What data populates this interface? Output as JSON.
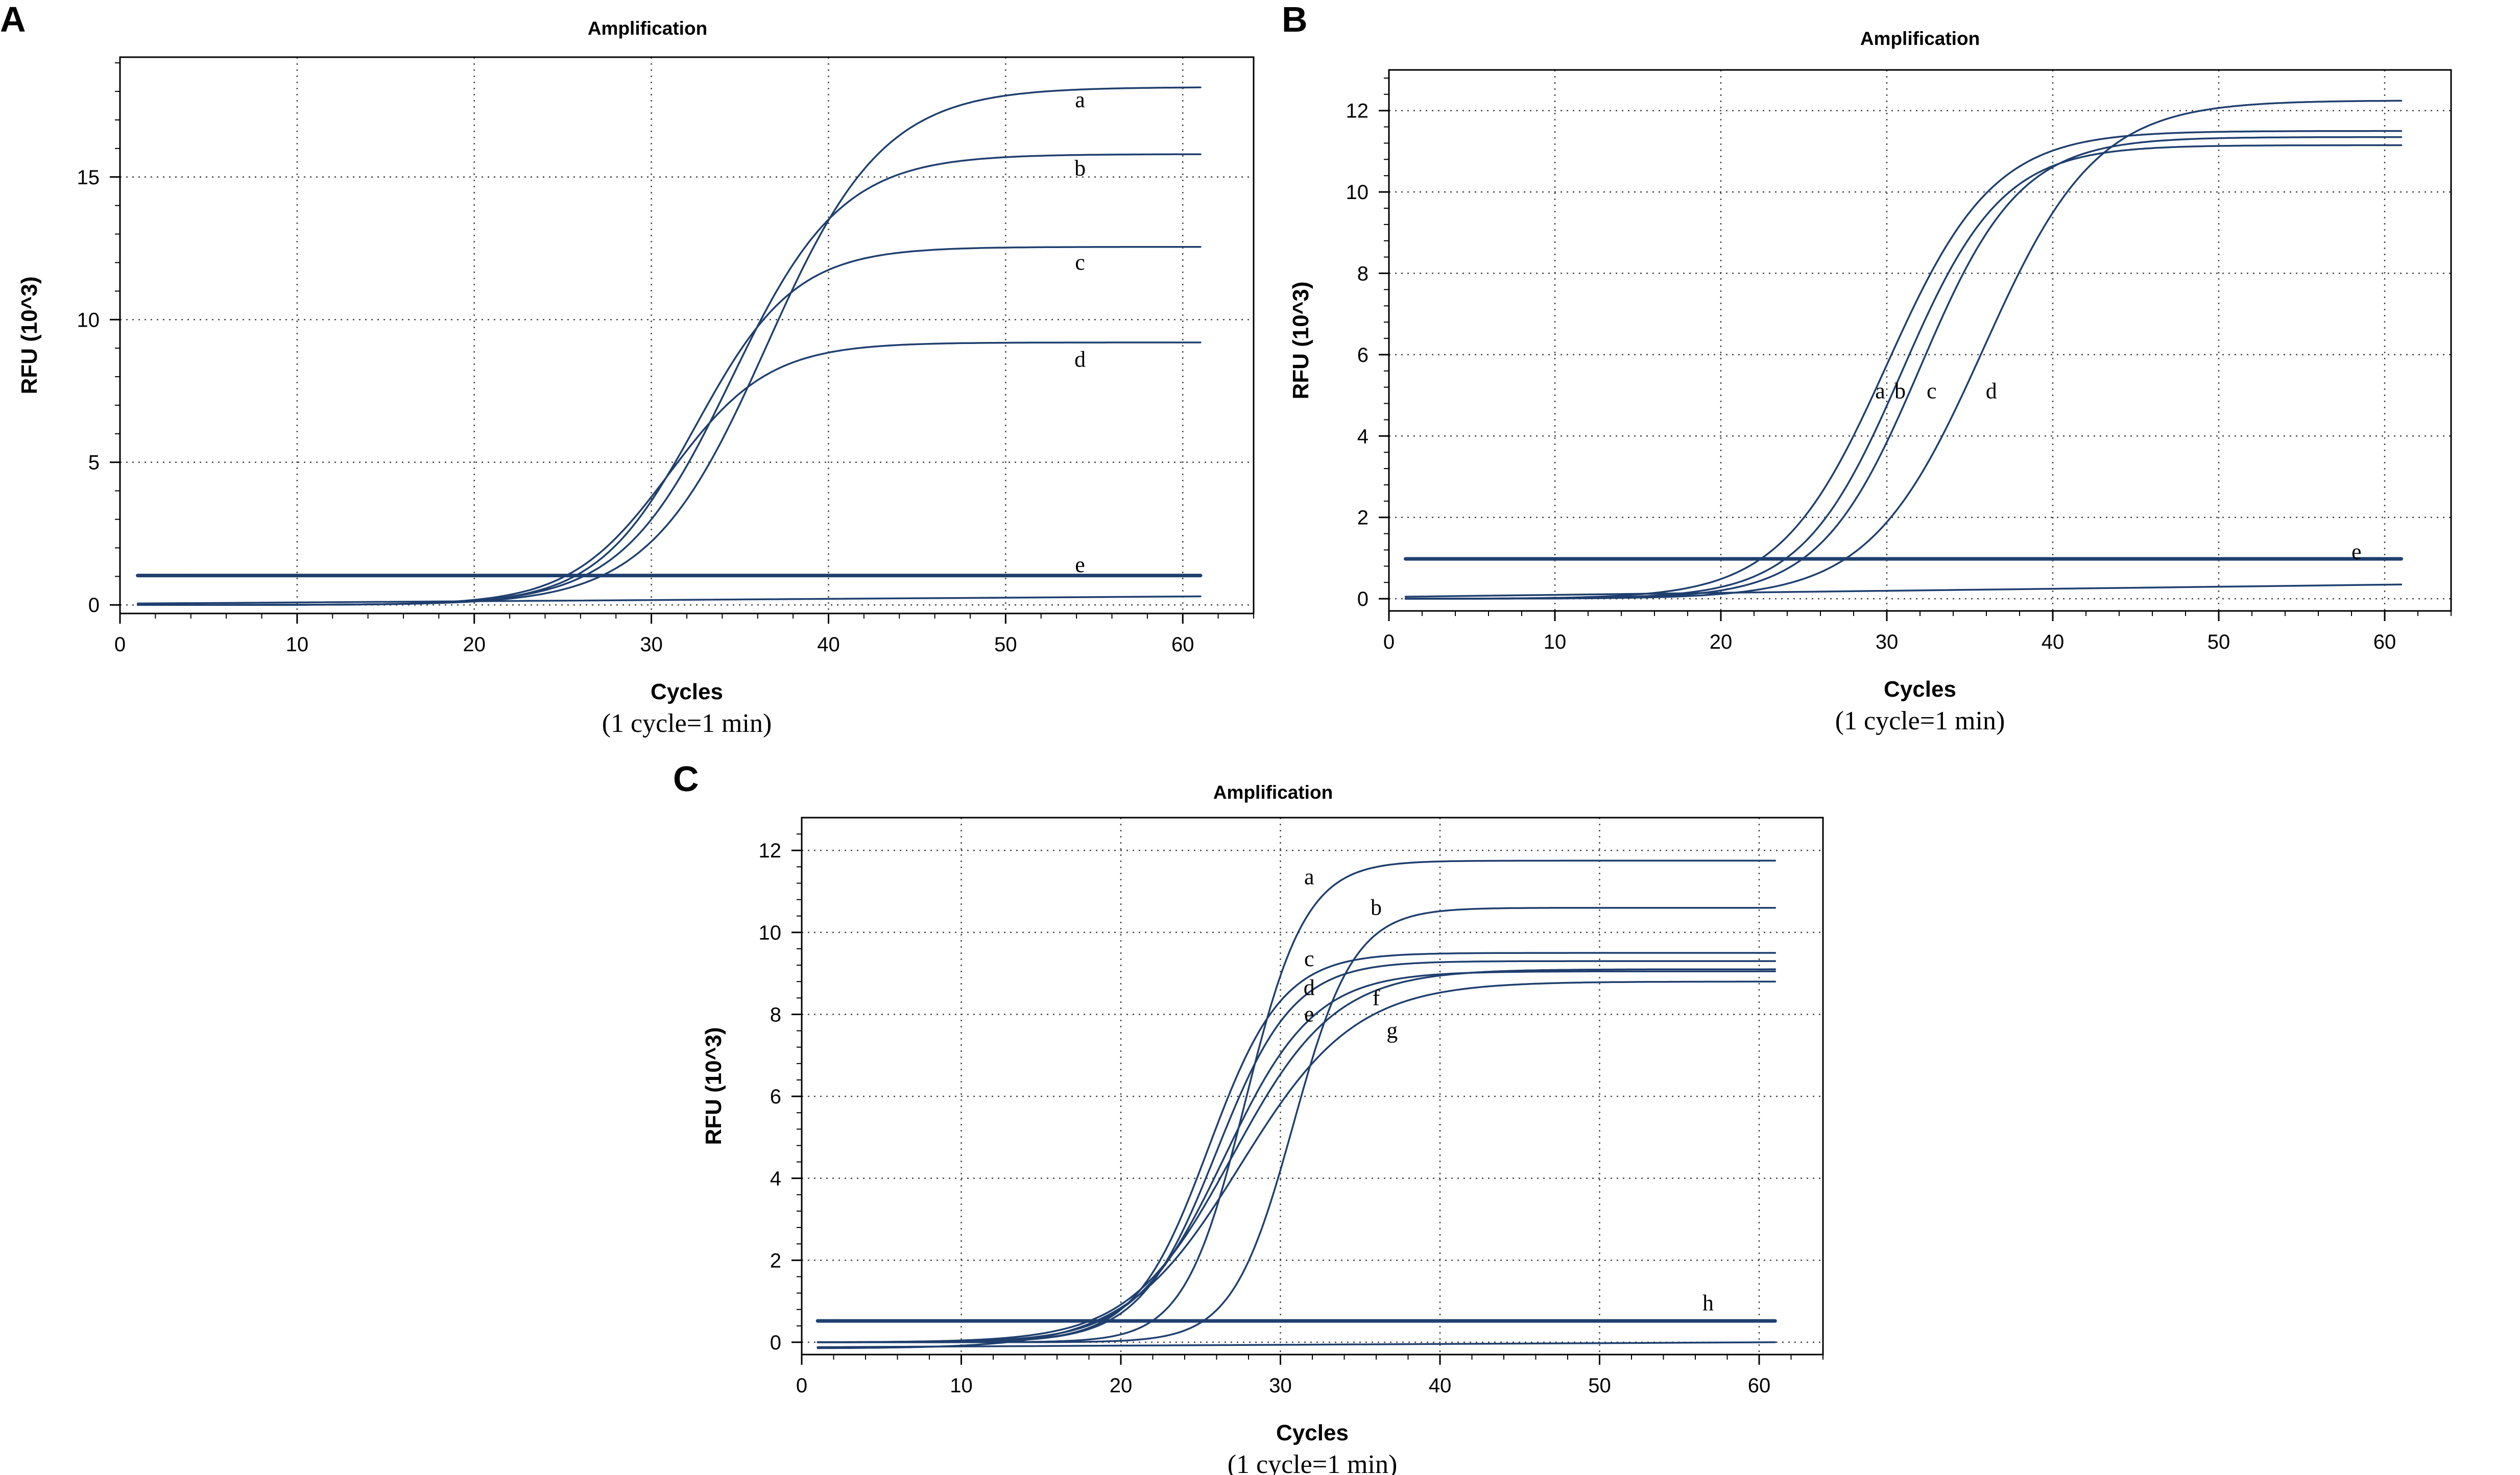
{
  "chart_data": [
    {
      "id": "A",
      "type": "line",
      "panel_label": "A",
      "title": "Amplification",
      "xlabel": "Cycles",
      "xnote": "(1 cycle=1 min)",
      "ylabel": "RFU (10^3)",
      "xlim": [
        0,
        64
      ],
      "ylim": [
        -0.3,
        19.2
      ],
      "xticks": [
        0,
        10,
        20,
        30,
        40,
        50,
        60
      ],
      "yticks": [
        0,
        5,
        10,
        15
      ],
      "grid": true,
      "color": "#1f3f6e",
      "series": [
        {
          "name": "a",
          "type": "sigmoid",
          "start": 1,
          "end": 61,
          "base": 0.0,
          "plateau": 18.15,
          "mid": 36.5,
          "width": 3.3
        },
        {
          "name": "b",
          "type": "sigmoid",
          "start": 1,
          "end": 61,
          "base": 0.0,
          "plateau": 15.8,
          "mid": 34.5,
          "width": 3.1
        },
        {
          "name": "c",
          "type": "sigmoid",
          "start": 1,
          "end": 61,
          "base": 0.0,
          "plateau": 12.55,
          "mid": 32.5,
          "width": 2.8
        },
        {
          "name": "d",
          "type": "sigmoid",
          "start": 1,
          "end": 61,
          "base": 0.0,
          "plateau": 9.2,
          "mid": 31.0,
          "width": 2.8
        },
        {
          "name": "e",
          "type": "threshold",
          "start": 1,
          "end": 61,
          "value": 1.03
        },
        {
          "name": "",
          "type": "baseline",
          "start": 1,
          "end": 61,
          "from": 0.05,
          "to": 0.3
        }
      ],
      "labels": [
        {
          "text": "a",
          "x": 54.2,
          "y": 17.7
        },
        {
          "text": "b",
          "x": 54.2,
          "y": 15.3
        },
        {
          "text": "c",
          "x": 54.2,
          "y": 12.0
        },
        {
          "text": "d",
          "x": 54.2,
          "y": 8.6
        },
        {
          "text": "e",
          "x": 54.2,
          "y": 1.4
        }
      ]
    },
    {
      "id": "B",
      "type": "line",
      "panel_label": "B",
      "title": "Amplification",
      "xlabel": "Cycles",
      "xnote": "(1 cycle=1 min)",
      "ylabel": "RFU (10^3)",
      "xlim": [
        0,
        64
      ],
      "ylim": [
        -0.3,
        13.0
      ],
      "xticks": [
        0,
        10,
        20,
        30,
        40,
        50,
        60
      ],
      "yticks": [
        0,
        2,
        4,
        6,
        8,
        10,
        12
      ],
      "grid": true,
      "color": "#1f3f6e",
      "series": [
        {
          "name": "a",
          "type": "sigmoid",
          "start": 1,
          "end": 61,
          "base": 0.0,
          "plateau": 11.5,
          "mid": 30.0,
          "width": 3.2
        },
        {
          "name": "b",
          "type": "sigmoid",
          "start": 1,
          "end": 61,
          "base": 0.0,
          "plateau": 11.15,
          "mid": 30.9,
          "width": 3.0
        },
        {
          "name": "c",
          "type": "sigmoid",
          "start": 1,
          "end": 61,
          "base": 0.0,
          "plateau": 11.35,
          "mid": 32.0,
          "width": 3.0
        },
        {
          "name": "d",
          "type": "sigmoid",
          "start": 1,
          "end": 61,
          "base": 0.0,
          "plateau": 12.25,
          "mid": 35.8,
          "width": 3.4
        },
        {
          "name": "e",
          "type": "threshold",
          "start": 1,
          "end": 61,
          "value": 0.98
        },
        {
          "name": "",
          "type": "baseline",
          "start": 1,
          "end": 61,
          "from": 0.05,
          "to": 0.35
        }
      ],
      "labels": [
        {
          "text": "a",
          "x": 29.6,
          "y": 5.1
        },
        {
          "text": "b",
          "x": 30.8,
          "y": 5.1
        },
        {
          "text": "c",
          "x": 32.7,
          "y": 5.1
        },
        {
          "text": "d",
          "x": 36.3,
          "y": 5.1
        },
        {
          "text": "e",
          "x": 58.3,
          "y": 1.15
        }
      ]
    },
    {
      "id": "C",
      "type": "line",
      "panel_label": "C",
      "title": "Amplification",
      "xlabel": "Cycles",
      "xnote": "(1 cycle=1 min)",
      "ylabel": "RFU (10^3)",
      "xlim": [
        0,
        64
      ],
      "ylim": [
        -0.3,
        12.8
      ],
      "xticks": [
        0,
        10,
        20,
        30,
        40,
        50,
        60
      ],
      "yticks": [
        0,
        2,
        4,
        6,
        8,
        10,
        12
      ],
      "grid": true,
      "color": "#1f3f6e",
      "series": [
        {
          "name": "a",
          "type": "sigmoid",
          "start": 1,
          "end": 61,
          "base": 0.0,
          "plateau": 11.75,
          "mid": 27.8,
          "width": 1.9
        },
        {
          "name": "b",
          "type": "sigmoid",
          "start": 1,
          "end": 61,
          "base": 0.0,
          "plateau": 10.6,
          "mid": 30.8,
          "width": 1.9
        },
        {
          "name": "c",
          "type": "sigmoid",
          "start": 1,
          "end": 61,
          "base": 0.0,
          "plateau": 9.5,
          "mid": 25.5,
          "width": 2.3
        },
        {
          "name": "d",
          "type": "sigmoid",
          "start": 1,
          "end": 61,
          "base": 0.0,
          "plateau": 9.3,
          "mid": 26.0,
          "width": 2.4
        },
        {
          "name": "e",
          "type": "sigmoid",
          "start": 1,
          "end": 61,
          "base": 0.0,
          "plateau": 9.05,
          "mid": 26.5,
          "width": 2.8
        },
        {
          "name": "f",
          "type": "sigmoid",
          "start": 1,
          "end": 61,
          "base": 0.0,
          "plateau": 9.1,
          "mid": 27.0,
          "width": 3.2
        },
        {
          "name": "g",
          "type": "sigmoid",
          "start": 1,
          "end": 61,
          "base": -0.15,
          "plateau": 8.8,
          "mid": 27.5,
          "width": 3.6
        },
        {
          "name": "h",
          "type": "threshold",
          "start": 1,
          "end": 61,
          "value": 0.52
        },
        {
          "name": "",
          "type": "baseline",
          "start": 1,
          "end": 61,
          "from": -0.12,
          "to": 0.0
        }
      ],
      "labels": [
        {
          "text": "a",
          "x": 31.8,
          "y": 11.35
        },
        {
          "text": "b",
          "x": 36.0,
          "y": 10.6
        },
        {
          "text": "c",
          "x": 31.8,
          "y": 9.35
        },
        {
          "text": "d",
          "x": 31.8,
          "y": 8.65
        },
        {
          "text": "e",
          "x": 31.8,
          "y": 8.0
        },
        {
          "text": "f",
          "x": 36.0,
          "y": 8.4
        },
        {
          "text": "g",
          "x": 37.0,
          "y": 7.6
        },
        {
          "text": "h",
          "x": 56.8,
          "y": 0.95
        }
      ]
    }
  ]
}
